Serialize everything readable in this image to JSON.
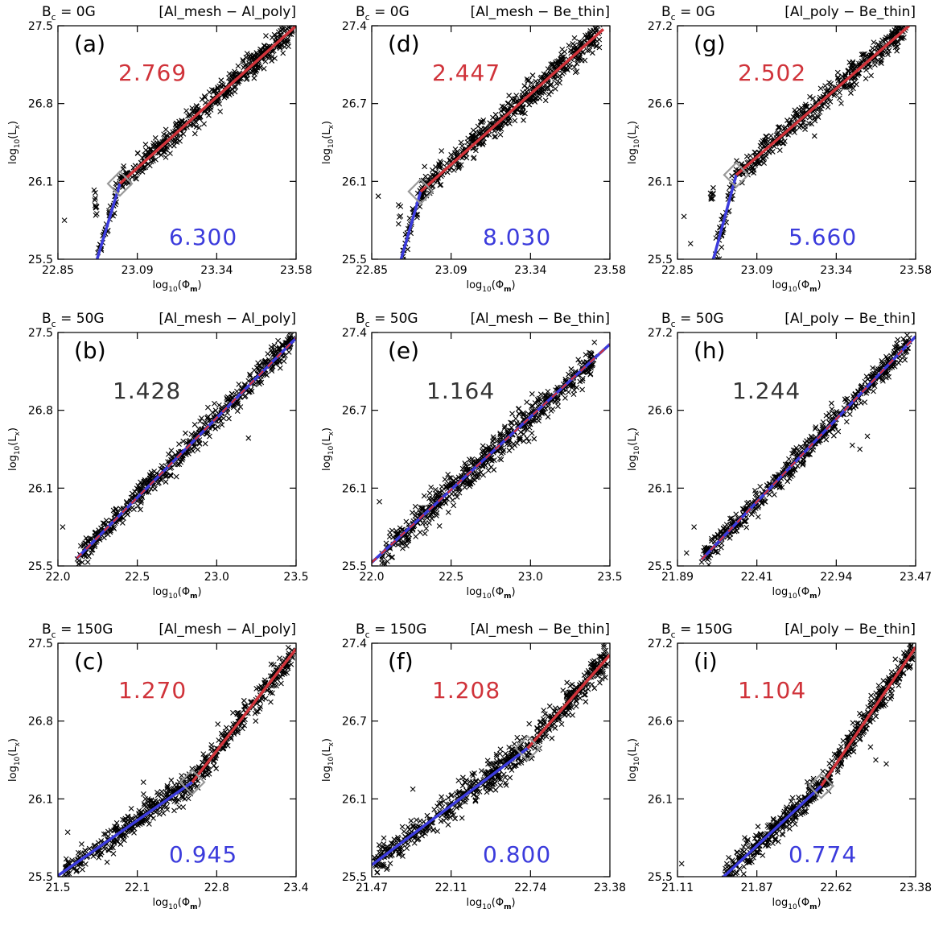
{
  "figure": {
    "layout": "3x3 grid of scatter panels",
    "colors": {
      "points": "#000000",
      "high_fit": "#d0333a",
      "low_fit": "#3b3bdc",
      "slope_dark": "#333333",
      "knee_box": "#999999"
    },
    "marker": "cross"
  },
  "chart_data": [
    {
      "id": "a",
      "type": "scatter",
      "panel_label": "(a)",
      "header_bc": "B",
      "header_sub": "c",
      "header_value": " = 0G",
      "header_pair": "[Al_mesh − Al_poly]",
      "xlabel": "log10(Φm)",
      "ylabel": "log10(Lx)",
      "xticks": [
        "22.85",
        "23.09",
        "23.34",
        "23.58"
      ],
      "yticks": [
        "25.5",
        "26.1",
        "26.8",
        "27.5"
      ],
      "xlim": [
        22.85,
        23.58
      ],
      "ylim": [
        25.45,
        27.55
      ],
      "broken": true,
      "knee": [
        23.04,
        26.13
      ],
      "slope_high_label": "2.769",
      "slope_low_label": "6.300",
      "fits": [
        {
          "name": "low",
          "x": [
            22.97,
            23.04
          ],
          "y": [
            25.45,
            26.13
          ],
          "color": "#3b3bdc"
        },
        {
          "name": "high",
          "x": [
            23.04,
            23.58
          ],
          "y": [
            26.13,
            27.55
          ],
          "color": "#d0333a"
        }
      ],
      "scatter": {
        "x_start": 22.96,
        "x_end": 23.57,
        "spread": 0.055,
        "n": 520,
        "outliers": [
          [
            22.87,
            25.8
          ],
          [
            23.27,
            26.58
          ],
          [
            23.43,
            27.3
          ]
        ]
      }
    },
    {
      "id": "d",
      "type": "scatter",
      "panel_label": "(d)",
      "header_bc": "B",
      "header_sub": "c",
      "header_value": " = 0G",
      "header_pair": "[Al_mesh − Be_thin]",
      "xlabel": "log10(Φm)",
      "ylabel": "log10(Lx)",
      "xticks": [
        "22.85",
        "23.09",
        "23.34",
        "23.58"
      ],
      "yticks": [
        "25.5",
        "26.1",
        "26.7",
        "27.4"
      ],
      "xlim": [
        22.85,
        23.58
      ],
      "ylim": [
        25.45,
        27.45
      ],
      "broken": true,
      "knee": [
        23.0,
        26.03
      ],
      "slope_high_label": "2.447",
      "slope_low_label": "8.030",
      "fits": [
        {
          "name": "low",
          "x": [
            22.94,
            23.0
          ],
          "y": [
            25.45,
            26.03
          ],
          "color": "#3b3bdc"
        },
        {
          "name": "high",
          "x": [
            23.0,
            23.56
          ],
          "y": [
            26.03,
            27.42
          ],
          "color": "#d0333a"
        }
      ],
      "scatter": {
        "x_start": 22.93,
        "x_end": 23.55,
        "spread": 0.06,
        "n": 560,
        "outliers": [
          [
            22.87,
            25.99
          ],
          [
            23.16,
            26.4
          ]
        ]
      }
    },
    {
      "id": "g",
      "type": "scatter",
      "panel_label": "(g)",
      "header_bc": "B",
      "header_sub": "c",
      "header_value": " = 0G",
      "header_pair": "[Al_poly − Be_thin]",
      "xlabel": "log10(Φm)",
      "ylabel": "log10(Lx)",
      "xticks": [
        "22.85",
        "23.09",
        "23.34",
        "23.58"
      ],
      "yticks": [
        "25.5",
        "26.1",
        "26.6",
        "27.2"
      ],
      "xlim": [
        22.85,
        23.58
      ],
      "ylim": [
        25.45,
        27.25
      ],
      "broken": true,
      "knee": [
        23.03,
        26.1
      ],
      "slope_high_label": "2.502",
      "slope_low_label": "5.660",
      "fits": [
        {
          "name": "low",
          "x": [
            22.96,
            23.03
          ],
          "y": [
            25.45,
            26.1
          ],
          "color": "#3b3bdc"
        },
        {
          "name": "high",
          "x": [
            23.03,
            23.56
          ],
          "y": [
            26.1,
            27.25
          ],
          "color": "#d0333a"
        }
      ],
      "scatter": {
        "x_start": 22.95,
        "x_end": 23.55,
        "spread": 0.05,
        "n": 480,
        "outliers": [
          [
            22.87,
            25.78
          ],
          [
            22.89,
            25.57
          ],
          [
            23.27,
            26.4
          ]
        ]
      }
    },
    {
      "id": "b",
      "type": "scatter",
      "panel_label": "(b)",
      "header_bc": "B",
      "header_sub": "c",
      "header_value": " = 50G",
      "header_pair": "[Al_mesh − Al_poly]",
      "xlabel": "log10(Φm)",
      "ylabel": "log10(Lx)",
      "xticks": [
        "22.0",
        "22.5",
        "23.0",
        "23.5"
      ],
      "yticks": [
        "25.5",
        "26.1",
        "26.8",
        "27.5"
      ],
      "xlim": [
        22.0,
        23.5
      ],
      "ylim": [
        25.45,
        27.55
      ],
      "broken": false,
      "slope_single_label": "1.428",
      "fits": [
        {
          "name": "combined",
          "x": [
            22.12,
            23.5
          ],
          "y": [
            25.52,
            27.5
          ],
          "color": "#3b3bdc",
          "dashed_overlay": "#d0333a"
        }
      ],
      "scatter": {
        "x_start": 22.12,
        "x_end": 23.48,
        "spread": 0.055,
        "n": 560,
        "outliers": [
          [
            22.03,
            25.8
          ],
          [
            23.2,
            26.6
          ]
        ]
      }
    },
    {
      "id": "e",
      "type": "scatter",
      "panel_label": "(e)",
      "header_bc": "B",
      "header_sub": "c",
      "header_value": " = 50G",
      "header_pair": "[Al_mesh − Be_thin]",
      "xlabel": "log10(Φm)",
      "ylabel": "log10(Lx)",
      "xticks": [
        "22.0",
        "22.5",
        "23.0",
        "23.5"
      ],
      "yticks": [
        "25.5",
        "26.1",
        "26.7",
        "27.4"
      ],
      "xlim": [
        22.0,
        23.55
      ],
      "ylim": [
        25.45,
        27.45
      ],
      "broken": false,
      "slope_single_label": "1.164",
      "fits": [
        {
          "name": "combined",
          "x": [
            22.0,
            23.55
          ],
          "y": [
            25.48,
            27.35
          ],
          "color": "#3b3bdc",
          "dashed_overlay": "#d0333a"
        }
      ],
      "scatter": {
        "x_start": 22.06,
        "x_end": 23.45,
        "spread": 0.065,
        "n": 600,
        "outliers": [
          [
            22.05,
            26.0
          ]
        ]
      }
    },
    {
      "id": "h",
      "type": "scatter",
      "panel_label": "(h)",
      "header_bc": "B",
      "header_sub": "c",
      "header_value": " = 50G",
      "header_pair": "[Al_poly − Be_thin]",
      "xlabel": "log10(Φm)",
      "ylabel": "log10(Lx)",
      "xticks": [
        "21.89",
        "22.41",
        "22.94",
        "23.47"
      ],
      "yticks": [
        "25.5",
        "26.1",
        "26.6",
        "27.2"
      ],
      "xlim": [
        21.89,
        23.47
      ],
      "ylim": [
        25.45,
        27.25
      ],
      "broken": false,
      "slope_single_label": "1.244",
      "fits": [
        {
          "name": "combined",
          "x": [
            22.05,
            23.47
          ],
          "y": [
            25.5,
            27.22
          ],
          "color": "#3b3bdc",
          "dashed_overlay": "#d0333a"
        }
      ],
      "scatter": {
        "x_start": 22.05,
        "x_end": 23.43,
        "spread": 0.045,
        "n": 520,
        "outliers": [
          [
            21.95,
            25.55
          ],
          [
            22.0,
            25.75
          ],
          [
            23.05,
            26.38
          ],
          [
            23.1,
            26.35
          ],
          [
            23.15,
            26.45
          ]
        ]
      }
    },
    {
      "id": "c",
      "type": "scatter",
      "panel_label": "(c)",
      "header_bc": "B",
      "header_sub": "c",
      "header_value": " = 150G",
      "header_pair": "[Al_mesh − Al_poly]",
      "xlabel": "log10(Φm)",
      "ylabel": "log10(Lx)",
      "xticks": [
        "21.5",
        "22.1",
        "22.8",
        "23.4"
      ],
      "yticks": [
        "25.5",
        "26.1",
        "26.8",
        "27.5"
      ],
      "xlim": [
        21.5,
        23.45
      ],
      "ylim": [
        25.45,
        27.55
      ],
      "broken": true,
      "knee": [
        22.6,
        26.3
      ],
      "slope_high_label": "1.270",
      "slope_low_label": "0.945",
      "fits": [
        {
          "name": "low",
          "x": [
            21.5,
            22.6
          ],
          "y": [
            25.46,
            26.3
          ],
          "color": "#3b3bdc"
        },
        {
          "name": "high",
          "x": [
            22.6,
            23.45
          ],
          "y": [
            26.3,
            27.5
          ],
          "color": "#d0333a"
        }
      ],
      "scatter": {
        "x_start": 21.55,
        "x_end": 23.43,
        "spread": 0.06,
        "n": 600,
        "outliers": [
          [
            21.58,
            25.85
          ],
          [
            22.2,
            26.3
          ]
        ]
      }
    },
    {
      "id": "f",
      "type": "scatter",
      "panel_label": "(f)",
      "header_bc": "B",
      "header_sub": "c",
      "header_value": " = 150G",
      "header_pair": "[Al_mesh − Be_thin]",
      "xlabel": "log10(Φm)",
      "ylabel": "log10(Lx)",
      "xticks": [
        "21.47",
        "22.11",
        "22.74",
        "23.38"
      ],
      "yticks": [
        "25.5",
        "26.1",
        "26.7",
        "27.4"
      ],
      "xlim": [
        21.47,
        23.38
      ],
      "ylim": [
        25.45,
        27.45
      ],
      "broken": true,
      "knee": [
        22.72,
        26.55
      ],
      "slope_high_label": "1.208",
      "slope_low_label": "0.800",
      "fits": [
        {
          "name": "low",
          "x": [
            21.47,
            22.72
          ],
          "y": [
            25.55,
            26.55
          ],
          "color": "#3b3bdc"
        },
        {
          "name": "high",
          "x": [
            22.72,
            23.38
          ],
          "y": [
            26.55,
            27.35
          ],
          "color": "#d0333a"
        }
      ],
      "scatter": {
        "x_start": 21.49,
        "x_end": 23.36,
        "spread": 0.065,
        "n": 640,
        "outliers": [
          [
            21.8,
            26.2
          ],
          [
            22.3,
            26.1
          ]
        ]
      }
    },
    {
      "id": "i",
      "type": "scatter",
      "panel_label": "(i)",
      "header_bc": "B",
      "header_sub": "c",
      "header_value": " = 150G",
      "header_pair": "[Al_poly − Be_thin]",
      "xlabel": "log10(Φm)",
      "ylabel": "log10(Lx)",
      "xticks": [
        "21.11",
        "21.87",
        "22.62",
        "23.38"
      ],
      "yticks": [
        "25.5",
        "26.1",
        "26.6",
        "27.2"
      ],
      "xlim": [
        21.11,
        23.38
      ],
      "ylim": [
        25.45,
        27.25
      ],
      "broken": true,
      "knee": [
        22.48,
        26.15
      ],
      "slope_high_label": "1.104",
      "slope_low_label": "0.774",
      "fits": [
        {
          "name": "low",
          "x": [
            21.55,
            22.48
          ],
          "y": [
            25.45,
            26.15
          ],
          "color": "#3b3bdc"
        },
        {
          "name": "high",
          "x": [
            22.48,
            23.38
          ],
          "y": [
            26.15,
            27.22
          ],
          "color": "#d0333a"
        }
      ],
      "scatter": {
        "x_start": 21.55,
        "x_end": 23.35,
        "spread": 0.05,
        "n": 580,
        "outliers": [
          [
            21.15,
            25.55
          ],
          [
            21.75,
            25.75
          ],
          [
            22.95,
            26.45
          ],
          [
            23.0,
            26.35
          ],
          [
            23.1,
            26.32
          ]
        ]
      }
    }
  ]
}
